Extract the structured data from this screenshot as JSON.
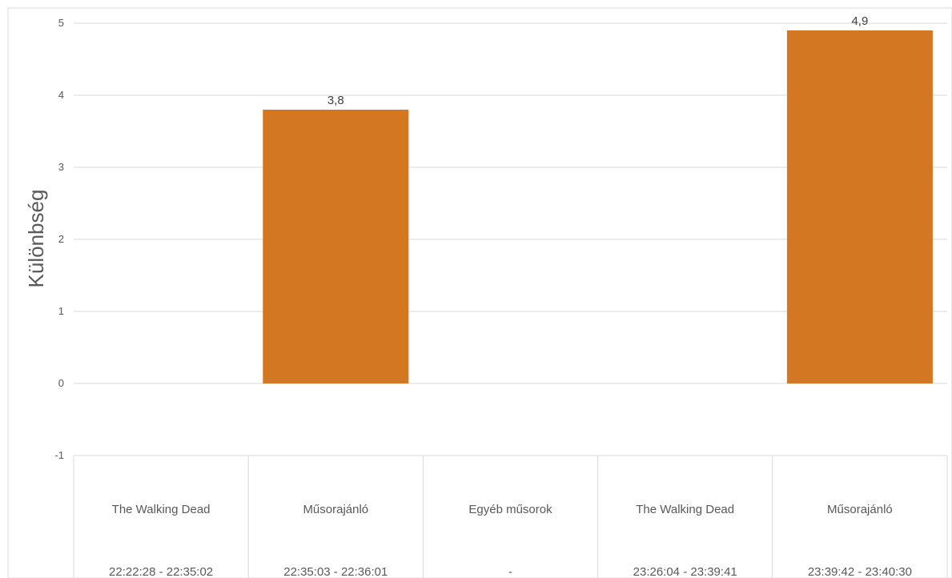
{
  "chart_data": {
    "type": "bar",
    "title": "",
    "xlabel": "",
    "ylabel": "Különbség",
    "ylim": [
      -1,
      5
    ],
    "yticks": [
      5,
      4,
      3,
      2,
      1,
      0,
      -1
    ],
    "grid": true,
    "legend": "none",
    "bar_color": "#D47722",
    "categories": [
      {
        "name": "The Walking Dead",
        "time": "22:22:28 - 22:35:02"
      },
      {
        "name": "Műsorajánló",
        "time": "22:35:03 - 22:36:01"
      },
      {
        "name": "Egyéb műsorok",
        "time": "-"
      },
      {
        "name": "The Walking Dead",
        "time": "23:26:04 - 23:39:41"
      },
      {
        "name": "Műsorajánló",
        "time": "23:39:42 - 23:40:30"
      }
    ],
    "values": [
      null,
      3.8,
      null,
      null,
      4.9
    ],
    "data_labels": [
      "",
      "3,8",
      "",
      "",
      "4,9"
    ]
  }
}
